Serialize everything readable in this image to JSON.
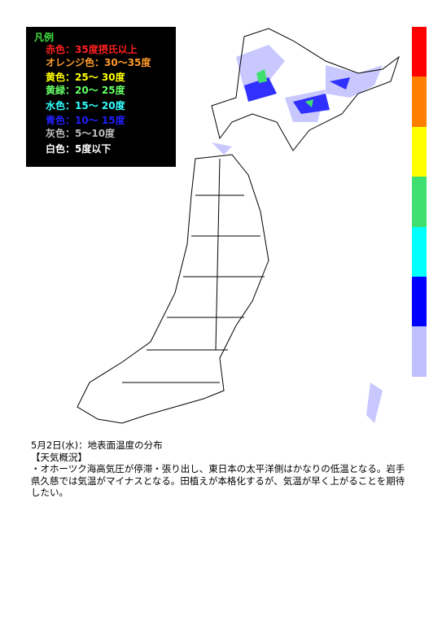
{
  "legend": {
    "title": "凡例",
    "items": [
      {
        "label": "赤色：35度摂氏以上",
        "color": "#ff2020"
      },
      {
        "label": "オレンジ色：30～35度",
        "color": "#ff9a2a"
      },
      {
        "label": "黄色：25～ 30度",
        "color": "#ffff00"
      },
      {
        "label": "黄緑：20～ 25度",
        "color": "#66ff66"
      },
      {
        "label": "水色：15～ 20度",
        "color": "#33ffff"
      },
      {
        "label": "青色：10～ 15度",
        "color": "#2020ff"
      },
      {
        "label": "灰色：5～10度",
        "color": "#bbbbbb"
      },
      {
        "label": "白色：5度以下",
        "color": "#ffffff"
      }
    ]
  },
  "color_bar": [
    "#ff0000",
    "#ff8000",
    "#ffff00",
    "#40e070",
    "#00ffff",
    "#0000ff",
    "#c0c0ff"
  ],
  "caption": {
    "title": "5月2日(水)：地表面温度の分布",
    "heading": "【天気概況】",
    "body": "・オホーツク海高気圧が停滞・張り出し、東日本の太平洋側はかなりの低温となる。岩手県久慈では気温がマイナスとなる。田植えが本格化するが、気温が早く上がることを期待したい。"
  }
}
